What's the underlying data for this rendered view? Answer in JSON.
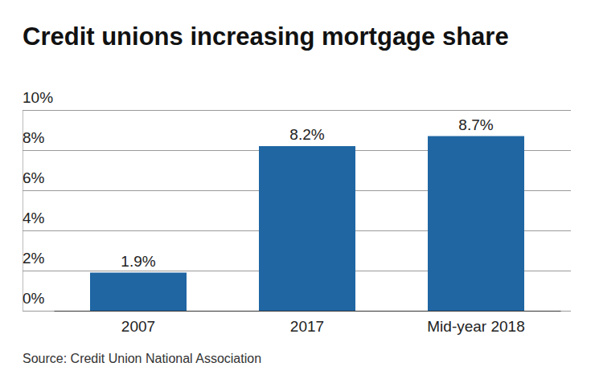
{
  "chart_data": {
    "type": "bar",
    "title": "Credit unions increasing mortgage share",
    "categories": [
      "2007",
      "2017",
      "Mid-year 2018"
    ],
    "values": [
      1.9,
      8.2,
      8.7
    ],
    "value_labels": [
      "1.9%",
      "8.2%",
      "8.7%"
    ],
    "color": "#1f66a3",
    "ylim": [
      0,
      10
    ],
    "yticks": [
      {
        "value": 0,
        "label": "0%"
      },
      {
        "value": 2,
        "label": "2%"
      },
      {
        "value": 4,
        "label": "4%"
      },
      {
        "value": 6,
        "label": "6%"
      },
      {
        "value": 8,
        "label": "8%"
      },
      {
        "value": 10,
        "label": "10%"
      }
    ],
    "grid": true,
    "data_labels": true,
    "source": "Source: Credit Union National Association"
  }
}
